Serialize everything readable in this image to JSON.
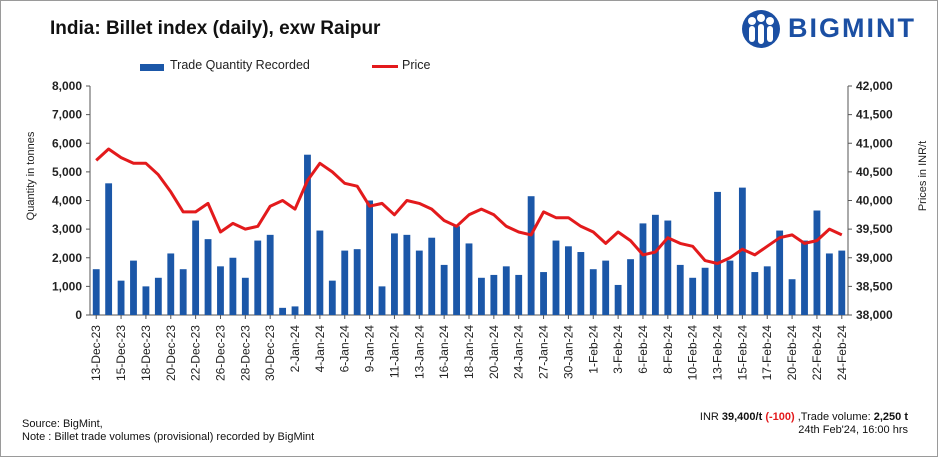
{
  "header": {
    "title": "India: Billet index (daily), exw Raipur",
    "brand": "BIGMINT"
  },
  "legend": {
    "bar_label": "Trade Quantity Recorded",
    "line_label": "Price"
  },
  "footer": {
    "source": "Source: BigMint,",
    "note": "Note : Billet trade volumes (provisional) recorded by BigMint",
    "status_prefix": "INR ",
    "status_price": "39,400/t",
    "status_change": "(-100)",
    "status_volume_label": " ,Trade volume: ",
    "status_volume": "2,250 t",
    "status_time": "24th Feb'24, 16:00 hrs"
  },
  "chart_data": {
    "type": "bar+line",
    "title": "India: Billet index (daily), exw Raipur",
    "ylabel_left": "Quantity in tonnes",
    "ylabel_right": "Prices in INR/t",
    "ylim_left": [
      0,
      8000
    ],
    "ylim_right": [
      38000,
      42000
    ],
    "yticks_left": [
      "0",
      "1,000",
      "2,000",
      "3,000",
      "4,000",
      "5,000",
      "6,000",
      "7,000",
      "8,000"
    ],
    "yticks_right": [
      "38,000",
      "38,500",
      "39,000",
      "39,500",
      "40,000",
      "40,500",
      "41,000",
      "41,500",
      "42,000"
    ],
    "x_tick_labels": [
      "13-Dec-23",
      "15-Dec-23",
      "18-Dec-23",
      "20-Dec-23",
      "22-Dec-23",
      "26-Dec-23",
      "28-Dec-23",
      "30-Dec-23",
      "2-Jan-24",
      "4-Jan-24",
      "6-Jan-24",
      "9-Jan-24",
      "11-Jan-24",
      "13-Jan-24",
      "16-Jan-24",
      "18-Jan-24",
      "20-Jan-24",
      "24-Jan-24",
      "27-Jan-24",
      "30-Jan-24",
      "1-Feb-24",
      "3-Feb-24",
      "6-Feb-24",
      "8-Feb-24",
      "10-Feb-24",
      "13-Feb-24",
      "15-Feb-24",
      "17-Feb-24",
      "20-Feb-24",
      "22-Feb-24",
      "24-Feb-24"
    ],
    "series": [
      {
        "name": "Trade Quantity Recorded",
        "type": "bar",
        "axis": "left",
        "color": "#1b57a8",
        "values": [
          1600,
          4600,
          1200,
          1900,
          1000,
          1300,
          2150,
          1600,
          3300,
          2650,
          1700,
          2000,
          1300,
          2600,
          2800,
          250,
          300,
          5600,
          2950,
          1200,
          2250,
          2300,
          4000,
          1000,
          2850,
          2800,
          2250,
          2700,
          1750,
          3100,
          2500,
          1300,
          1400,
          1700,
          1400,
          4150,
          1500,
          2600,
          2400,
          2200,
          1600,
          1900,
          1050,
          1950,
          3200,
          3500,
          3300,
          1750,
          1300,
          1650,
          4300,
          1900,
          4450,
          1500,
          1700,
          2950,
          1250,
          2600,
          3650,
          2150,
          2250
        ]
      },
      {
        "name": "Price",
        "type": "line",
        "axis": "right",
        "color": "#e31a1c",
        "values": [
          40700,
          40900,
          40750,
          40650,
          40650,
          40450,
          40150,
          39800,
          39800,
          39950,
          39450,
          39600,
          39500,
          39550,
          39900,
          40000,
          39850,
          40350,
          40650,
          40500,
          40300,
          40250,
          39900,
          39950,
          39750,
          40000,
          39950,
          39850,
          39650,
          39550,
          39750,
          39850,
          39750,
          39550,
          39450,
          39400,
          39800,
          39700,
          39700,
          39550,
          39450,
          39250,
          39450,
          39300,
          39050,
          39100,
          39350,
          39250,
          39200,
          38950,
          38900,
          39000,
          39150,
          39050,
          39200,
          39350,
          39400,
          39250,
          39300,
          39500,
          39400
        ]
      }
    ]
  }
}
